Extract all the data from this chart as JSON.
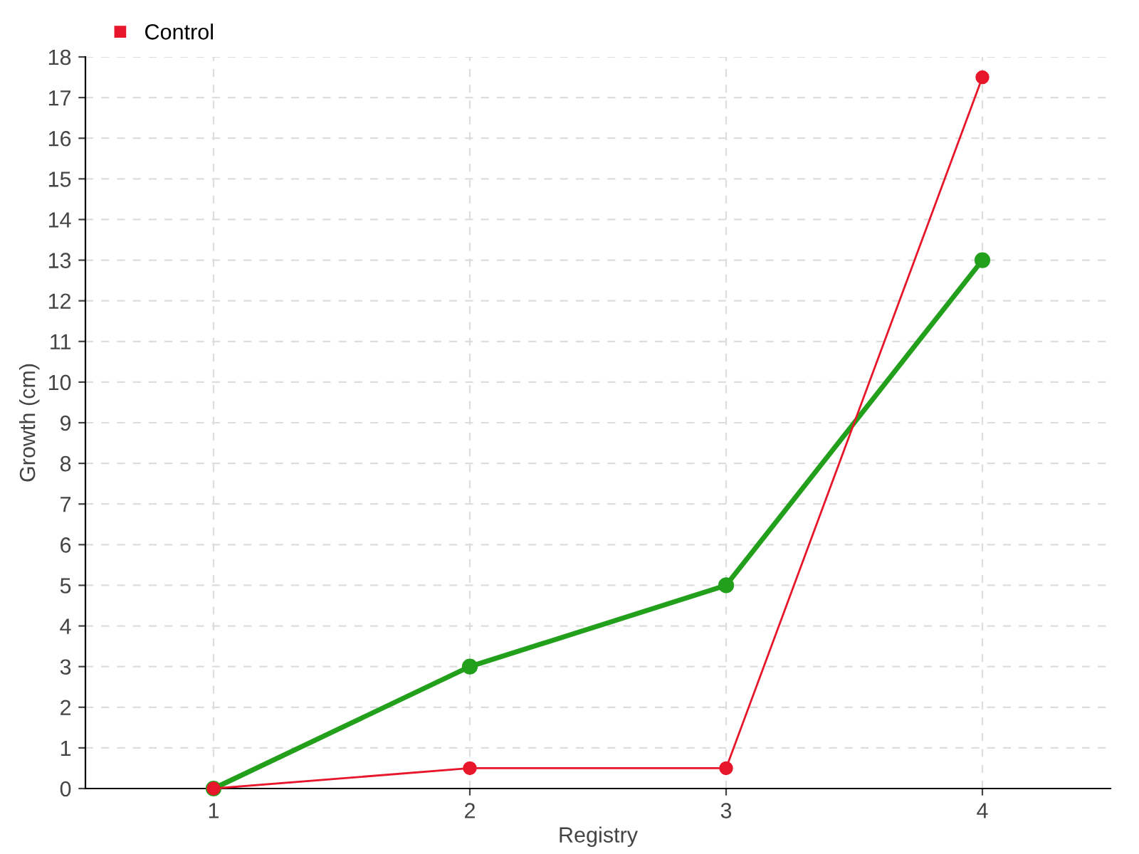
{
  "chart_data": {
    "type": "line",
    "xlabel": "Registry",
    "ylabel": "Growth (cm)",
    "x": [
      1,
      2,
      3,
      4
    ],
    "series": [
      {
        "color": "#22a01c",
        "values": [
          0,
          3,
          5,
          13
        ]
      },
      {
        "name": "Control",
        "color": "#e8162a",
        "values": [
          0,
          0.5,
          0.5,
          17.5
        ]
      }
    ],
    "xlim": [
      0.5,
      4.5
    ],
    "xticks": [
      1,
      2,
      3,
      4
    ],
    "ylim": [
      0,
      18
    ],
    "yticks": [
      0,
      1,
      2,
      3,
      4,
      5,
      6,
      7,
      8,
      9,
      10,
      11,
      12,
      13,
      14,
      15,
      16,
      17,
      18
    ],
    "grid": true,
    "legend": "top left",
    "marker": "circle"
  }
}
